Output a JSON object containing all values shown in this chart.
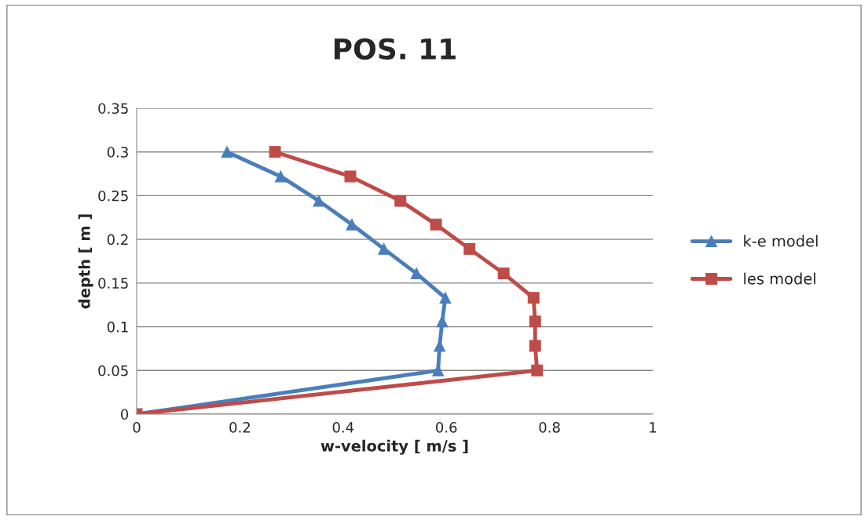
{
  "chart_data": {
    "type": "line",
    "title": "POS. 11",
    "xlabel": "w-velocity [ m/s ]",
    "ylabel": "depth [ m ]",
    "xlim": [
      0,
      1
    ],
    "xticks": [
      0,
      0.2,
      0.4,
      0.6,
      0.8,
      1
    ],
    "ylim": [
      0,
      0.35
    ],
    "yticks": [
      0,
      0.05,
      0.1,
      0.15,
      0.2,
      0.25,
      0.3,
      0.35
    ],
    "grid": "y",
    "legend": "right",
    "series": [
      {
        "name": "k-e model",
        "color": "#4a7ebb",
        "marker": "triangle",
        "x": [
          0,
          0.584,
          0.587,
          0.592,
          0.598,
          0.542,
          0.479,
          0.417,
          0.353,
          0.279,
          0.175
        ],
        "values": [
          0,
          0.05,
          0.078,
          0.106,
          0.133,
          0.161,
          0.189,
          0.217,
          0.244,
          0.272,
          0.3
        ]
      },
      {
        "name": "les model",
        "color": "#be4b48",
        "marker": "square",
        "x": [
          0,
          0.776,
          0.772,
          0.772,
          0.769,
          0.711,
          0.645,
          0.58,
          0.511,
          0.414,
          0.268
        ],
        "values": [
          0,
          0.05,
          0.078,
          0.106,
          0.133,
          0.161,
          0.189,
          0.217,
          0.244,
          0.272,
          0.3
        ]
      }
    ]
  }
}
